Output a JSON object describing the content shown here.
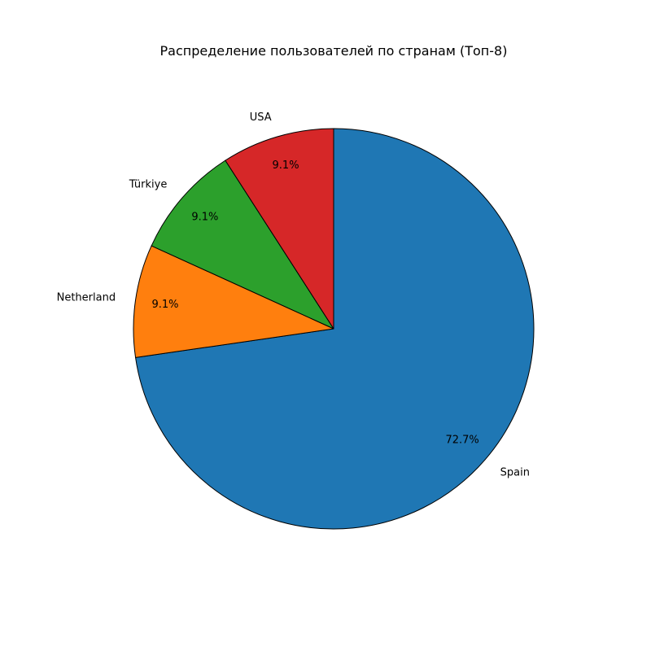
{
  "chart_data": {
    "type": "pie",
    "title": "Распределение пользователей по странам (Топ-8)",
    "categories": [
      "Spain",
      "Netherland",
      "Türkiye",
      "USA"
    ],
    "values": [
      72.7,
      9.1,
      9.1,
      9.1
    ],
    "value_labels": [
      "72.7%",
      "9.1%",
      "9.1%",
      "9.1%"
    ],
    "colors": [
      "#1f77b4",
      "#ff7f0e",
      "#2ca02c",
      "#d62728"
    ],
    "edge_color": "#000000",
    "start_angle_deg": 90,
    "direction": "clockwise"
  }
}
